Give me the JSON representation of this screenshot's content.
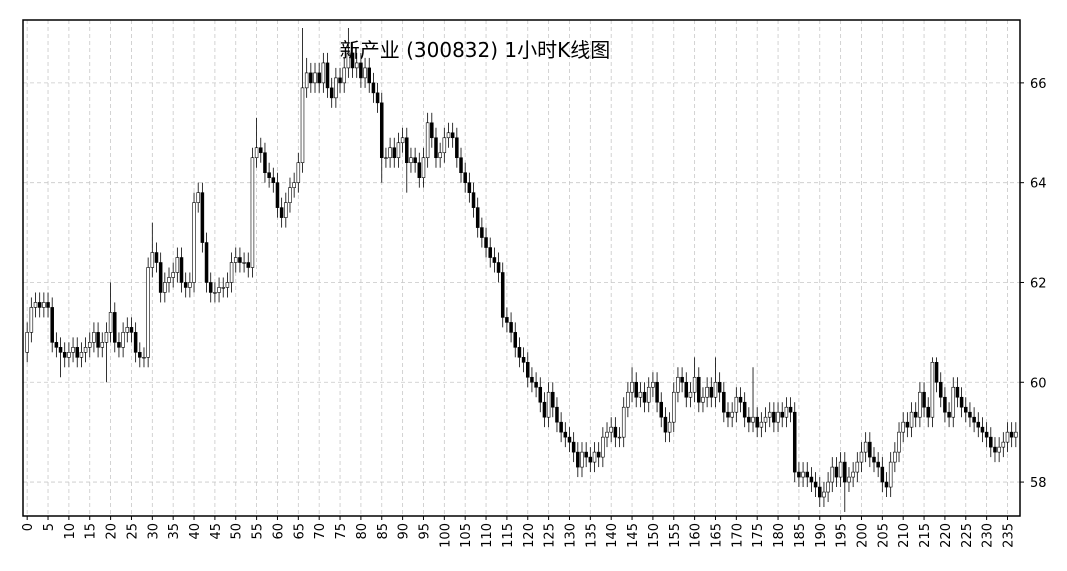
{
  "chart_data": {
    "type": "candlestick",
    "title": "新产业 (300832) 1小时K线图",
    "x": [
      0,
      1,
      2,
      3,
      4,
      5,
      6,
      7,
      8,
      9,
      10,
      11,
      12,
      13,
      14,
      15,
      16,
      17,
      18,
      19,
      20,
      21,
      22,
      23,
      24,
      25,
      26,
      27,
      28,
      29,
      30,
      31,
      32,
      33,
      34,
      35,
      36,
      37,
      38,
      39,
      40,
      41,
      42,
      43,
      44,
      45,
      46,
      47,
      48,
      49,
      50,
      51,
      52,
      53,
      54,
      55,
      56,
      57,
      58,
      59,
      60,
      61,
      62,
      63,
      64,
      65,
      66,
      67,
      68,
      69,
      70,
      71,
      72,
      73,
      74,
      75,
      76,
      77,
      78,
      79,
      80,
      81,
      82,
      83,
      84,
      85,
      86,
      87,
      88,
      89,
      90,
      91,
      92,
      93,
      94,
      95,
      96,
      97,
      98,
      99,
      100,
      101,
      102,
      103,
      104,
      105,
      106,
      107,
      108,
      109,
      110,
      111,
      112,
      113,
      114,
      115,
      116,
      117,
      118,
      119,
      120,
      121,
      122,
      123,
      124,
      125,
      126,
      127,
      128,
      129,
      130,
      131,
      132,
      133,
      134,
      135,
      136,
      137,
      138,
      139,
      140,
      141,
      142,
      143,
      144,
      145,
      146,
      147,
      148,
      149,
      150,
      151,
      152,
      153,
      154,
      155,
      156,
      157,
      158,
      159,
      160,
      161,
      162,
      163,
      164,
      165,
      166,
      167,
      168,
      169,
      170,
      171,
      172,
      173,
      174,
      175,
      176,
      177,
      178,
      179,
      180,
      181,
      182,
      183,
      184,
      185,
      186,
      187,
      188,
      189,
      190,
      191,
      192,
      193,
      194,
      195,
      196,
      197,
      198,
      199,
      200,
      201,
      202,
      203,
      204,
      205,
      206,
      207,
      208,
      209,
      210,
      211,
      212,
      213,
      214,
      215,
      216,
      217,
      218,
      219,
      220,
      221,
      222,
      223,
      224,
      225,
      226,
      227,
      228,
      229,
      230,
      231,
      232,
      233,
      234,
      235,
      236,
      237
    ],
    "open": [
      60.6,
      61.0,
      61.5,
      61.6,
      61.5,
      61.6,
      61.5,
      60.8,
      60.7,
      60.6,
      60.5,
      60.6,
      60.7,
      60.5,
      60.6,
      60.7,
      60.8,
      61.0,
      60.7,
      60.8,
      61.0,
      61.4,
      60.8,
      60.7,
      61.0,
      61.1,
      61.0,
      60.6,
      60.5,
      60.5,
      62.3,
      62.6,
      62.4,
      61.8,
      62.0,
      62.1,
      62.2,
      62.5,
      62.0,
      61.9,
      62.0,
      63.6,
      63.8,
      62.8,
      62.0,
      61.8,
      61.8,
      61.9,
      61.9,
      62.0,
      62.4,
      62.5,
      62.4,
      62.4,
      62.3,
      64.5,
      64.7,
      64.6,
      64.2,
      64.1,
      64.0,
      63.5,
      63.3,
      63.6,
      63.9,
      64.0,
      64.4,
      65.9,
      66.2,
      66.0,
      66.2,
      66.0,
      66.4,
      65.9,
      65.7,
      66.1,
      66.0,
      66.3,
      66.6,
      66.3,
      66.4,
      66.1,
      66.3,
      66.0,
      65.8,
      65.6,
      64.5,
      64.5,
      64.7,
      64.5,
      64.8,
      64.9,
      64.4,
      64.5,
      64.4,
      64.1,
      64.5,
      65.2,
      64.9,
      64.5,
      64.6,
      64.9,
      65.0,
      64.9,
      64.5,
      64.2,
      64.0,
      63.8,
      63.5,
      63.1,
      62.9,
      62.7,
      62.5,
      62.4,
      62.2,
      61.3,
      61.2,
      61.0,
      60.7,
      60.5,
      60.4,
      60.1,
      60.0,
      59.9,
      59.6,
      59.3,
      59.8,
      59.5,
      59.2,
      59.0,
      58.9,
      58.8,
      58.6,
      58.3,
      58.6,
      58.5,
      58.4,
      58.6,
      58.5,
      58.9,
      59.0,
      59.1,
      58.9,
      58.9,
      59.5,
      59.8,
      60.0,
      59.7,
      59.8,
      59.6,
      59.9,
      60.0,
      59.6,
      59.3,
      59.0,
      59.2,
      59.8,
      60.1,
      60.0,
      59.7,
      59.8,
      60.1,
      59.6,
      59.7,
      59.9,
      59.7,
      60.0,
      59.8,
      59.4,
      59.3,
      59.4,
      59.7,
      59.6,
      59.3,
      59.2,
      59.3,
      59.1,
      59.2,
      59.3,
      59.4,
      59.2,
      59.4,
      59.3,
      59.5,
      59.4,
      58.2,
      58.1,
      58.2,
      58.1,
      58.0,
      57.9,
      57.7,
      57.8,
      58.0,
      58.3,
      58.1,
      58.4,
      58.0,
      58.1,
      58.2,
      58.4,
      58.6,
      58.8,
      58.5,
      58.4,
      58.3,
      58.0,
      57.9,
      58.4,
      58.6,
      59.0,
      59.2,
      59.1,
      59.4,
      59.3,
      59.8,
      59.5,
      59.3,
      60.4,
      60.0,
      59.7,
      59.4,
      59.3,
      59.9,
      59.7,
      59.5,
      59.4,
      59.3,
      59.2,
      59.1,
      59.0,
      58.9,
      58.7,
      58.6,
      58.7,
      58.8,
      59.0,
      58.9
    ],
    "high": [
      61.2,
      61.7,
      61.8,
      61.8,
      61.8,
      61.8,
      61.7,
      61.0,
      60.9,
      60.8,
      60.8,
      60.9,
      60.9,
      60.8,
      60.9,
      61.0,
      61.2,
      61.2,
      61.0,
      61.2,
      62.0,
      61.6,
      61.0,
      61.2,
      61.3,
      61.3,
      61.2,
      60.8,
      60.7,
      62.5,
      63.2,
      62.8,
      62.6,
      62.2,
      62.3,
      62.4,
      62.7,
      62.7,
      62.2,
      62.2,
      63.8,
      64.0,
      64.0,
      63.0,
      62.2,
      62.0,
      62.1,
      62.1,
      62.2,
      62.6,
      62.7,
      62.7,
      62.6,
      62.6,
      64.7,
      65.3,
      64.9,
      64.8,
      64.4,
      64.3,
      64.2,
      63.7,
      63.8,
      64.1,
      64.2,
      64.6,
      67.1,
      66.5,
      66.4,
      66.4,
      66.4,
      66.6,
      66.6,
      66.1,
      66.3,
      66.3,
      66.5,
      67.1,
      66.8,
      66.6,
      66.6,
      66.5,
      66.5,
      66.2,
      66.0,
      65.8,
      64.7,
      64.9,
      64.9,
      65.0,
      65.1,
      65.1,
      64.7,
      64.7,
      64.6,
      64.7,
      65.4,
      65.4,
      65.1,
      64.8,
      65.1,
      65.2,
      65.2,
      65.1,
      64.7,
      64.4,
      64.2,
      64.0,
      63.7,
      63.3,
      63.1,
      62.9,
      62.7,
      62.6,
      62.4,
      61.5,
      61.4,
      61.2,
      60.9,
      60.7,
      60.6,
      60.3,
      60.2,
      60.1,
      59.8,
      60.0,
      60.0,
      59.7,
      59.4,
      59.2,
      59.1,
      59.0,
      58.8,
      58.8,
      58.8,
      58.7,
      58.8,
      58.8,
      59.1,
      59.2,
      59.3,
      59.3,
      59.1,
      59.7,
      60.0,
      60.3,
      60.2,
      60.0,
      60.0,
      60.1,
      60.2,
      60.2,
      59.8,
      59.5,
      59.4,
      60.0,
      60.3,
      60.3,
      60.2,
      60.0,
      60.5,
      60.3,
      59.9,
      60.1,
      60.1,
      60.5,
      60.2,
      60.0,
      59.6,
      59.6,
      59.9,
      59.9,
      59.8,
      59.5,
      60.3,
      59.5,
      59.4,
      59.5,
      59.6,
      59.6,
      59.6,
      59.6,
      59.7,
      59.7,
      59.6,
      58.4,
      58.4,
      58.4,
      58.3,
      58.2,
      58.1,
      58.0,
      58.2,
      58.5,
      58.5,
      58.6,
      58.6,
      58.3,
      58.4,
      58.6,
      58.8,
      59.0,
      59.0,
      58.7,
      58.6,
      58.5,
      58.2,
      58.6,
      58.8,
      59.2,
      59.4,
      59.4,
      59.6,
      59.6,
      60.0,
      60.0,
      59.7,
      60.5,
      60.5,
      60.2,
      59.9,
      59.6,
      60.1,
      60.1,
      59.9,
      59.7,
      59.6,
      59.5,
      59.4,
      59.3,
      59.2,
      59.1,
      58.9,
      58.9,
      59.0,
      59.2,
      59.2,
      59.2
    ],
    "low": [
      60.4,
      60.8,
      61.3,
      61.3,
      61.3,
      61.3,
      60.6,
      60.5,
      60.1,
      60.3,
      60.3,
      60.4,
      60.3,
      60.3,
      60.4,
      60.5,
      60.6,
      60.5,
      60.5,
      60.0,
      60.8,
      60.6,
      60.5,
      60.5,
      60.8,
      60.8,
      60.4,
      60.3,
      60.3,
      60.3,
      62.1,
      62.2,
      61.6,
      61.6,
      61.8,
      61.9,
      62.0,
      61.8,
      61.7,
      61.7,
      61.8,
      63.4,
      62.6,
      61.8,
      61.6,
      61.6,
      61.6,
      61.7,
      61.7,
      61.8,
      62.2,
      62.2,
      62.2,
      62.1,
      62.1,
      64.3,
      64.4,
      64.0,
      63.9,
      63.8,
      63.3,
      63.1,
      63.1,
      63.4,
      63.7,
      63.8,
      64.2,
      65.7,
      65.8,
      65.8,
      65.8,
      65.8,
      65.7,
      65.5,
      65.5,
      65.8,
      65.8,
      66.1,
      66.1,
      66.1,
      65.9,
      65.9,
      65.8,
      65.6,
      65.4,
      64.0,
      64.3,
      64.3,
      64.3,
      64.3,
      64.6,
      63.8,
      64.2,
      64.2,
      63.9,
      63.9,
      64.3,
      64.7,
      64.3,
      64.3,
      64.4,
      64.7,
      64.7,
      64.3,
      64.0,
      63.8,
      63.6,
      63.3,
      62.9,
      62.7,
      62.5,
      62.3,
      62.2,
      62.0,
      61.1,
      61.0,
      60.8,
      60.5,
      60.3,
      60.2,
      59.9,
      59.8,
      59.7,
      59.4,
      59.1,
      59.1,
      59.3,
      59.0,
      58.8,
      58.7,
      58.6,
      58.4,
      58.1,
      58.1,
      58.3,
      58.2,
      58.2,
      58.3,
      58.3,
      58.7,
      58.8,
      58.7,
      58.7,
      58.7,
      59.3,
      59.6,
      59.5,
      59.5,
      59.4,
      59.4,
      59.7,
      59.4,
      59.1,
      58.8,
      58.8,
      59.0,
      59.6,
      59.8,
      59.5,
      59.5,
      59.6,
      59.4,
      59.4,
      59.5,
      59.5,
      59.5,
      59.6,
      59.2,
      59.1,
      59.1,
      59.2,
      59.4,
      59.1,
      59.0,
      59.0,
      58.9,
      58.9,
      59.0,
      59.1,
      59.0,
      59.0,
      59.1,
      59.1,
      59.2,
      58.0,
      57.9,
      57.9,
      57.9,
      57.8,
      57.7,
      57.5,
      57.5,
      57.6,
      57.8,
      57.9,
      57.9,
      57.4,
      57.8,
      57.9,
      58.0,
      58.2,
      58.4,
      58.3,
      58.2,
      58.1,
      57.8,
      57.7,
      57.7,
      58.2,
      58.4,
      58.8,
      58.9,
      58.9,
      59.1,
      59.1,
      59.3,
      59.1,
      59.1,
      59.8,
      59.5,
      59.2,
      59.1,
      59.1,
      59.5,
      59.3,
      59.2,
      59.1,
      59.0,
      58.9,
      58.8,
      58.7,
      58.5,
      58.4,
      58.4,
      58.5,
      58.6,
      58.7,
      58.7
    ],
    "close": [
      61.0,
      61.5,
      61.6,
      61.5,
      61.6,
      61.5,
      60.8,
      60.7,
      60.6,
      60.5,
      60.6,
      60.7,
      60.5,
      60.6,
      60.7,
      60.8,
      61.0,
      60.7,
      60.8,
      61.0,
      61.4,
      60.8,
      60.7,
      61.0,
      61.1,
      61.0,
      60.6,
      60.5,
      60.5,
      62.3,
      62.6,
      62.4,
      61.8,
      62.0,
      62.1,
      62.2,
      62.5,
      62.0,
      61.9,
      62.0,
      63.6,
      63.8,
      62.8,
      62.0,
      61.8,
      61.8,
      61.9,
      61.9,
      62.0,
      62.4,
      62.5,
      62.4,
      62.4,
      62.3,
      64.5,
      64.7,
      64.6,
      64.2,
      64.1,
      64.0,
      63.5,
      63.3,
      63.6,
      63.9,
      64.0,
      64.4,
      65.9,
      66.2,
      66.0,
      66.2,
      66.0,
      66.4,
      65.9,
      65.7,
      66.1,
      66.0,
      66.3,
      66.6,
      66.3,
      66.4,
      66.1,
      66.3,
      66.0,
      65.8,
      65.6,
      64.5,
      64.5,
      64.7,
      64.5,
      64.8,
      64.9,
      64.4,
      64.5,
      64.4,
      64.1,
      64.5,
      65.2,
      64.9,
      64.5,
      64.6,
      64.9,
      65.0,
      64.9,
      64.5,
      64.2,
      64.0,
      63.8,
      63.5,
      63.1,
      62.9,
      62.7,
      62.5,
      62.4,
      62.2,
      61.3,
      61.2,
      61.0,
      60.7,
      60.5,
      60.4,
      60.1,
      60.0,
      59.9,
      59.6,
      59.3,
      59.8,
      59.5,
      59.2,
      59.0,
      58.9,
      58.8,
      58.6,
      58.3,
      58.6,
      58.5,
      58.4,
      58.6,
      58.5,
      58.9,
      59.0,
      59.1,
      58.9,
      58.9,
      59.5,
      59.8,
      60.0,
      59.7,
      59.8,
      59.6,
      59.9,
      60.0,
      59.6,
      59.3,
      59.0,
      59.2,
      59.8,
      60.1,
      60.0,
      59.7,
      59.8,
      60.1,
      59.6,
      59.7,
      59.9,
      59.7,
      60.0,
      59.8,
      59.4,
      59.3,
      59.4,
      59.7,
      59.6,
      59.3,
      59.2,
      59.3,
      59.1,
      59.2,
      59.3,
      59.4,
      59.2,
      59.4,
      59.3,
      59.5,
      59.4,
      58.2,
      58.1,
      58.2,
      58.1,
      58.0,
      57.9,
      57.7,
      57.8,
      58.0,
      58.3,
      58.1,
      58.4,
      58.0,
      58.1,
      58.2,
      58.4,
      58.6,
      58.8,
      58.5,
      58.4,
      58.3,
      58.0,
      57.9,
      58.4,
      58.6,
      59.0,
      59.2,
      59.1,
      59.4,
      59.3,
      59.8,
      59.5,
      59.3,
      60.4,
      60.0,
      59.7,
      59.4,
      59.3,
      59.9,
      59.7,
      59.5,
      59.4,
      59.3,
      59.2,
      59.1,
      59.0,
      58.9,
      58.7,
      58.6,
      58.7,
      58.8,
      59.0,
      58.9,
      59.0
    ],
    "up_color": "#ffffff",
    "down_color": "#000000",
    "edge_color": "#000000",
    "xlim": [
      -1,
      238
    ],
    "ylim": [
      57.32,
      67.26
    ],
    "xticks": [
      0,
      5,
      10,
      15,
      20,
      25,
      30,
      35,
      40,
      45,
      50,
      55,
      60,
      65,
      70,
      75,
      80,
      85,
      90,
      95,
      100,
      105,
      110,
      115,
      120,
      125,
      130,
      135,
      140,
      145,
      150,
      155,
      160,
      165,
      170,
      175,
      180,
      185,
      190,
      195,
      200,
      205,
      210,
      215,
      220,
      225,
      230,
      235
    ],
    "yticks": [
      58,
      60,
      62,
      64,
      66
    ],
    "grid": true,
    "y_axis_side": "right"
  }
}
